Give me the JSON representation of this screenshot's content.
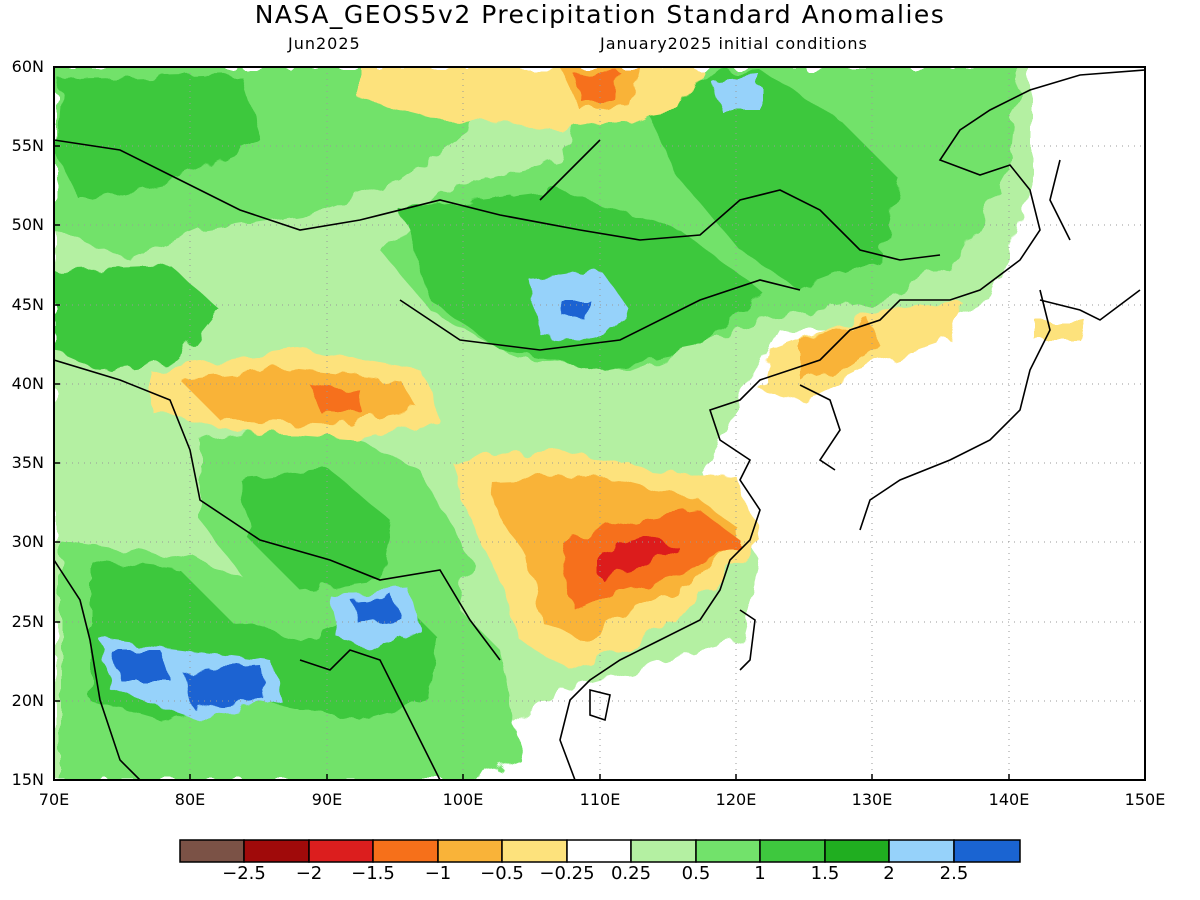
{
  "header": {
    "title": "NASA_GEOS5v2 Precipitation Standard Anomalies",
    "month": "Jun2025",
    "conditions": "January2025 initial conditions"
  },
  "axes": {
    "lat_labels": [
      "60N",
      "55N",
      "50N",
      "45N",
      "40N",
      "35N",
      "30N",
      "25N",
      "20N",
      "15N"
    ],
    "lon_labels": [
      "70E",
      "80E",
      "90E",
      "100E",
      "110E",
      "120E",
      "130E",
      "140E",
      "150E"
    ]
  },
  "colorbar": {
    "colors": [
      "#7b5246",
      "#a00a0a",
      "#dc1e1e",
      "#f6701a",
      "#f9b339",
      "#fde27c",
      "#ffffff",
      "#b4f0a2",
      "#72e26b",
      "#3ec83e",
      "#20ae20",
      "#96d2fa",
      "#1a64d2"
    ],
    "labels": [
      "−2.5",
      "−2",
      "−1.5",
      "−1",
      "−0.5",
      "−0.25",
      "0.25",
      "0.5",
      "1",
      "1.5",
      "2",
      "2.5"
    ]
  },
  "map": {
    "lon_range": [
      70,
      150
    ],
    "lat_range": [
      15,
      60
    ],
    "features": [
      {
        "name": "mongolia-siberia-wet",
        "cat": 9
      },
      {
        "name": "mongolia-core-wet",
        "cat": 10
      },
      {
        "name": "mongolia-heavy-wet",
        "cat": 11
      },
      {
        "name": "tibet-wet",
        "cat": 9
      },
      {
        "name": "india-bangladesh-wet",
        "cat": 10
      },
      {
        "name": "central-india-heavy-wet",
        "cat": 12
      },
      {
        "name": "yangtze-dry",
        "cat": 4
      },
      {
        "name": "yangtze-core-dry",
        "cat": 3
      },
      {
        "name": "yangtze-max-dry",
        "cat": 2
      },
      {
        "name": "tarim-dry",
        "cat": 4
      },
      {
        "name": "manchuria-korea-dry",
        "cat": 3
      }
    ]
  }
}
